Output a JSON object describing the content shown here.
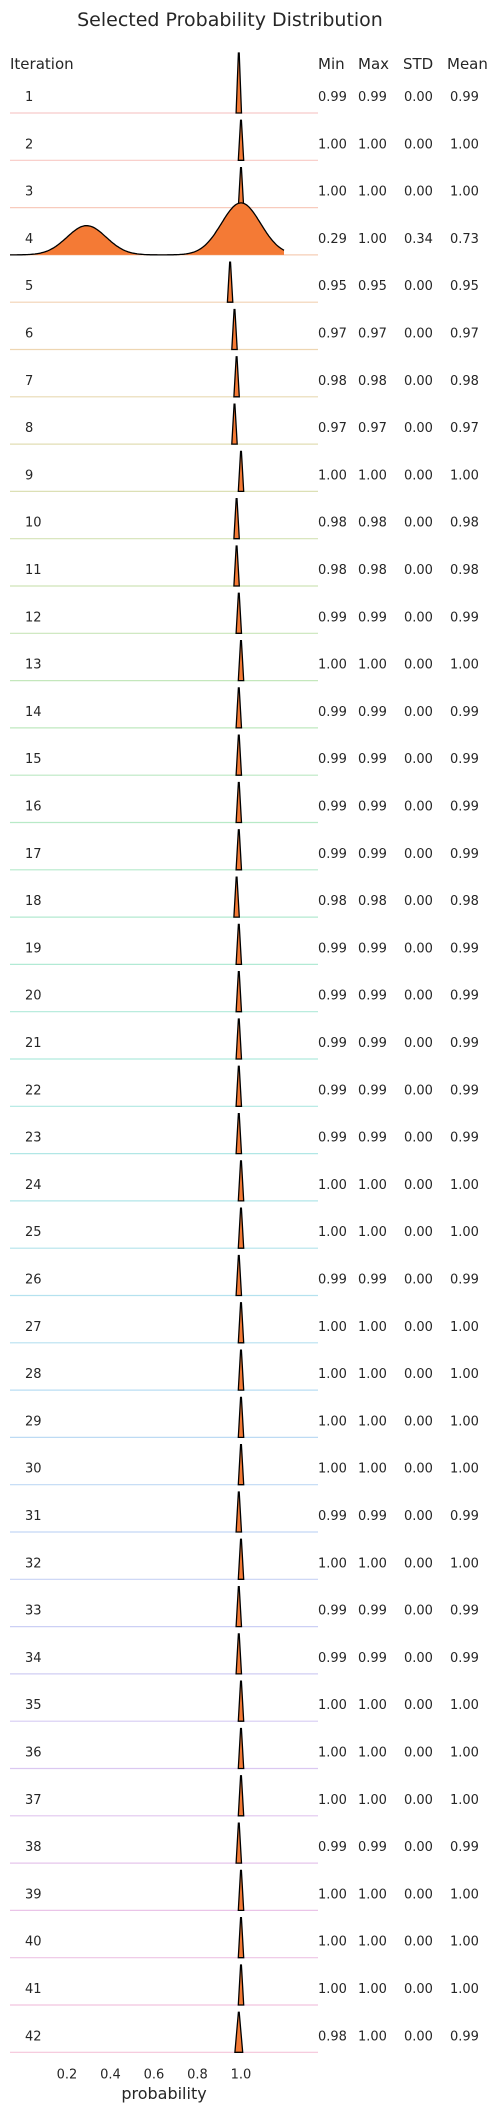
{
  "chart_data": {
    "type": "ridgeline",
    "title": "Selected Probability Distribution",
    "xlabel": "probability",
    "xlim": [
      0.0,
      1.2
    ],
    "xticks": [
      0.2,
      0.4,
      0.6,
      0.8,
      1.0
    ],
    "xtick_labels": [
      "0.2",
      "0.4",
      "0.6",
      "0.8",
      "1.0"
    ],
    "grid": false,
    "fill_color": "#f47a35",
    "columns": {
      "iteration": "Iteration",
      "min": "Min",
      "max": "Max",
      "std": "STD",
      "mean": "Mean"
    },
    "iterations": [
      {
        "iteration": "1",
        "min": "0.99",
        "max": "0.99",
        "std": "0.00",
        "mean": "0.99",
        "color": "#f8c9c9"
      },
      {
        "iteration": "2",
        "min": "1.00",
        "max": "1.00",
        "std": "0.00",
        "mean": "1.00",
        "color": "#f8cac5"
      },
      {
        "iteration": "3",
        "min": "1.00",
        "max": "1.00",
        "std": "0.00",
        "mean": "1.00",
        "color": "#f8cbbd"
      },
      {
        "iteration": "4",
        "min": "0.29",
        "max": "1.00",
        "std": "0.34",
        "mean": "0.73",
        "color": "#f6ceb6"
      },
      {
        "iteration": "5",
        "min": "0.95",
        "max": "0.95",
        "std": "0.00",
        "mean": "0.95",
        "color": "#f2d2b4"
      },
      {
        "iteration": "6",
        "min": "0.97",
        "max": "0.97",
        "std": "0.00",
        "mean": "0.97",
        "color": "#eed6b2"
      },
      {
        "iteration": "7",
        "min": "0.98",
        "max": "0.98",
        "std": "0.00",
        "mean": "0.98",
        "color": "#e8dab4"
      },
      {
        "iteration": "8",
        "min": "0.97",
        "max": "0.97",
        "std": "0.00",
        "mean": "0.97",
        "color": "#e2ddb4"
      },
      {
        "iteration": "9",
        "min": "1.00",
        "max": "1.00",
        "std": "0.00",
        "mean": "1.00",
        "color": "#dce0b5"
      },
      {
        "iteration": "10",
        "min": "0.98",
        "max": "0.98",
        "std": "0.00",
        "mean": "0.98",
        "color": "#d5e2b6"
      },
      {
        "iteration": "11",
        "min": "0.98",
        "max": "0.98",
        "std": "0.00",
        "mean": "0.98",
        "color": "#cfe4b8"
      },
      {
        "iteration": "12",
        "min": "0.99",
        "max": "0.99",
        "std": "0.00",
        "mean": "0.99",
        "color": "#c9e6ba"
      },
      {
        "iteration": "13",
        "min": "1.00",
        "max": "1.00",
        "std": "0.00",
        "mean": "1.00",
        "color": "#c4e7bc"
      },
      {
        "iteration": "14",
        "min": "0.99",
        "max": "0.99",
        "std": "0.00",
        "mean": "0.99",
        "color": "#bfe8bf"
      },
      {
        "iteration": "15",
        "min": "0.99",
        "max": "0.99",
        "std": "0.00",
        "mean": "0.99",
        "color": "#bbe9c3"
      },
      {
        "iteration": "16",
        "min": "0.99",
        "max": "0.99",
        "std": "0.00",
        "mean": "0.99",
        "color": "#b8eac7"
      },
      {
        "iteration": "17",
        "min": "0.99",
        "max": "0.99",
        "std": "0.00",
        "mean": "0.99",
        "color": "#b5eacc"
      },
      {
        "iteration": "18",
        "min": "0.98",
        "max": "0.98",
        "std": "0.00",
        "mean": "0.98",
        "color": "#b3eaD0"
      },
      {
        "iteration": "19",
        "min": "0.99",
        "max": "0.99",
        "std": "0.00",
        "mean": "0.99",
        "color": "#b2ead5"
      },
      {
        "iteration": "20",
        "min": "0.99",
        "max": "0.99",
        "std": "0.00",
        "mean": "0.99",
        "color": "#b1eada"
      },
      {
        "iteration": "21",
        "min": "0.99",
        "max": "0.99",
        "std": "0.00",
        "mean": "0.99",
        "color": "#b0e9de"
      },
      {
        "iteration": "22",
        "min": "0.99",
        "max": "0.99",
        "std": "0.00",
        "mean": "0.99",
        "color": "#b0e8e2"
      },
      {
        "iteration": "23",
        "min": "0.99",
        "max": "0.99",
        "std": "0.00",
        "mean": "0.99",
        "color": "#b1e7e6"
      },
      {
        "iteration": "24",
        "min": "1.00",
        "max": "1.00",
        "std": "0.00",
        "mean": "1.00",
        "color": "#b2e6e9"
      },
      {
        "iteration": "25",
        "min": "1.00",
        "max": "1.00",
        "std": "0.00",
        "mean": "1.00",
        "color": "#b3e4ec"
      },
      {
        "iteration": "26",
        "min": "0.99",
        "max": "0.99",
        "std": "0.00",
        "mean": "0.99",
        "color": "#b5e2ef"
      },
      {
        "iteration": "27",
        "min": "1.00",
        "max": "1.00",
        "std": "0.00",
        "mean": "1.00",
        "color": "#b7e0f1"
      },
      {
        "iteration": "28",
        "min": "1.00",
        "max": "1.00",
        "std": "0.00",
        "mean": "1.00",
        "color": "#badef3"
      },
      {
        "iteration": "29",
        "min": "1.00",
        "max": "1.00",
        "std": "0.00",
        "mean": "1.00",
        "color": "#bddbf4"
      },
      {
        "iteration": "30",
        "min": "1.00",
        "max": "1.00",
        "std": "0.00",
        "mean": "1.00",
        "color": "#c0d9f5"
      },
      {
        "iteration": "31",
        "min": "0.99",
        "max": "0.99",
        "std": "0.00",
        "mean": "0.99",
        "color": "#c4d6f5"
      },
      {
        "iteration": "32",
        "min": "1.00",
        "max": "1.00",
        "std": "0.00",
        "mean": "1.00",
        "color": "#c8d3f5"
      },
      {
        "iteration": "33",
        "min": "0.99",
        "max": "0.99",
        "std": "0.00",
        "mean": "0.99",
        "color": "#ccd0f5"
      },
      {
        "iteration": "34",
        "min": "0.99",
        "max": "0.99",
        "std": "0.00",
        "mean": "0.99",
        "color": "#d1cdf4"
      },
      {
        "iteration": "35",
        "min": "1.00",
        "max": "1.00",
        "std": "0.00",
        "mean": "1.00",
        "color": "#d6cbf3"
      },
      {
        "iteration": "36",
        "min": "1.00",
        "max": "1.00",
        "std": "0.00",
        "mean": "1.00",
        "color": "#dbc8f1"
      },
      {
        "iteration": "37",
        "min": "1.00",
        "max": "1.00",
        "std": "0.00",
        "mean": "1.00",
        "color": "#e0c6ef"
      },
      {
        "iteration": "38",
        "min": "0.99",
        "max": "0.99",
        "std": "0.00",
        "mean": "0.99",
        "color": "#e5c5ec"
      },
      {
        "iteration": "39",
        "min": "1.00",
        "max": "1.00",
        "std": "0.00",
        "mean": "1.00",
        "color": "#eac4e8"
      },
      {
        "iteration": "40",
        "min": "1.00",
        "max": "1.00",
        "std": "0.00",
        "mean": "1.00",
        "color": "#eec4e4"
      },
      {
        "iteration": "41",
        "min": "1.00",
        "max": "1.00",
        "std": "0.00",
        "mean": "1.00",
        "color": "#f2c4df"
      },
      {
        "iteration": "42",
        "min": "0.98",
        "max": "1.00",
        "std": "0.00",
        "mean": "0.99",
        "color": "#f5c5da"
      }
    ]
  }
}
